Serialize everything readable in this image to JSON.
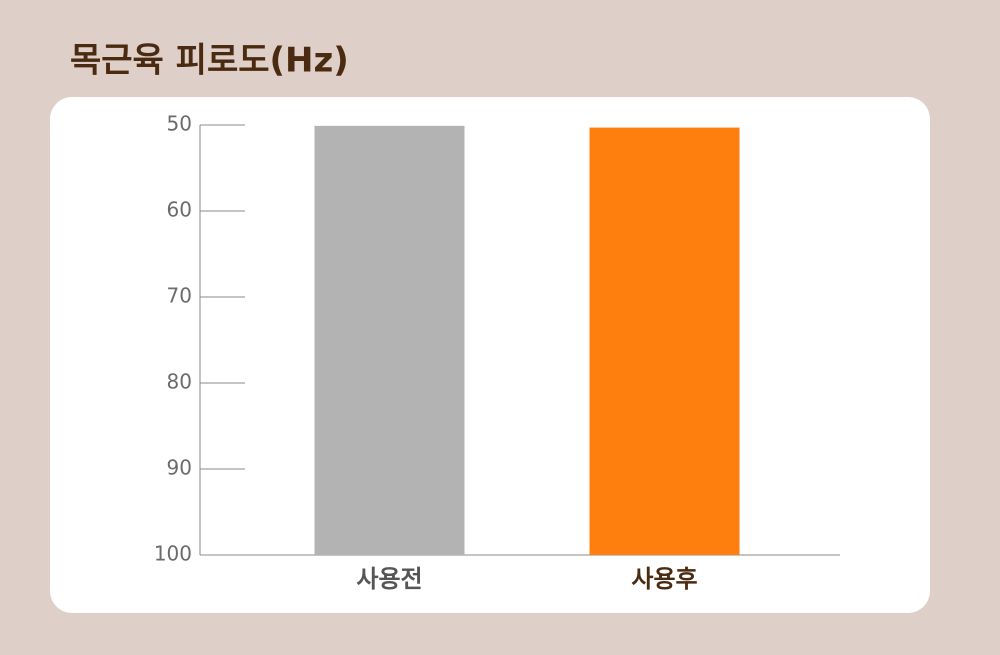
{
  "chart_data": {
    "type": "bar",
    "title": "목근육 피로도(Hz)",
    "categories": [
      "사용전",
      "사용후"
    ],
    "values": [
      50.1,
      50.3
    ],
    "colors": [
      "#b3b3b3",
      "#ff7f0e"
    ],
    "ylim": [
      100,
      50
    ],
    "yticks": [
      50,
      60,
      70,
      80,
      90,
      100
    ]
  }
}
